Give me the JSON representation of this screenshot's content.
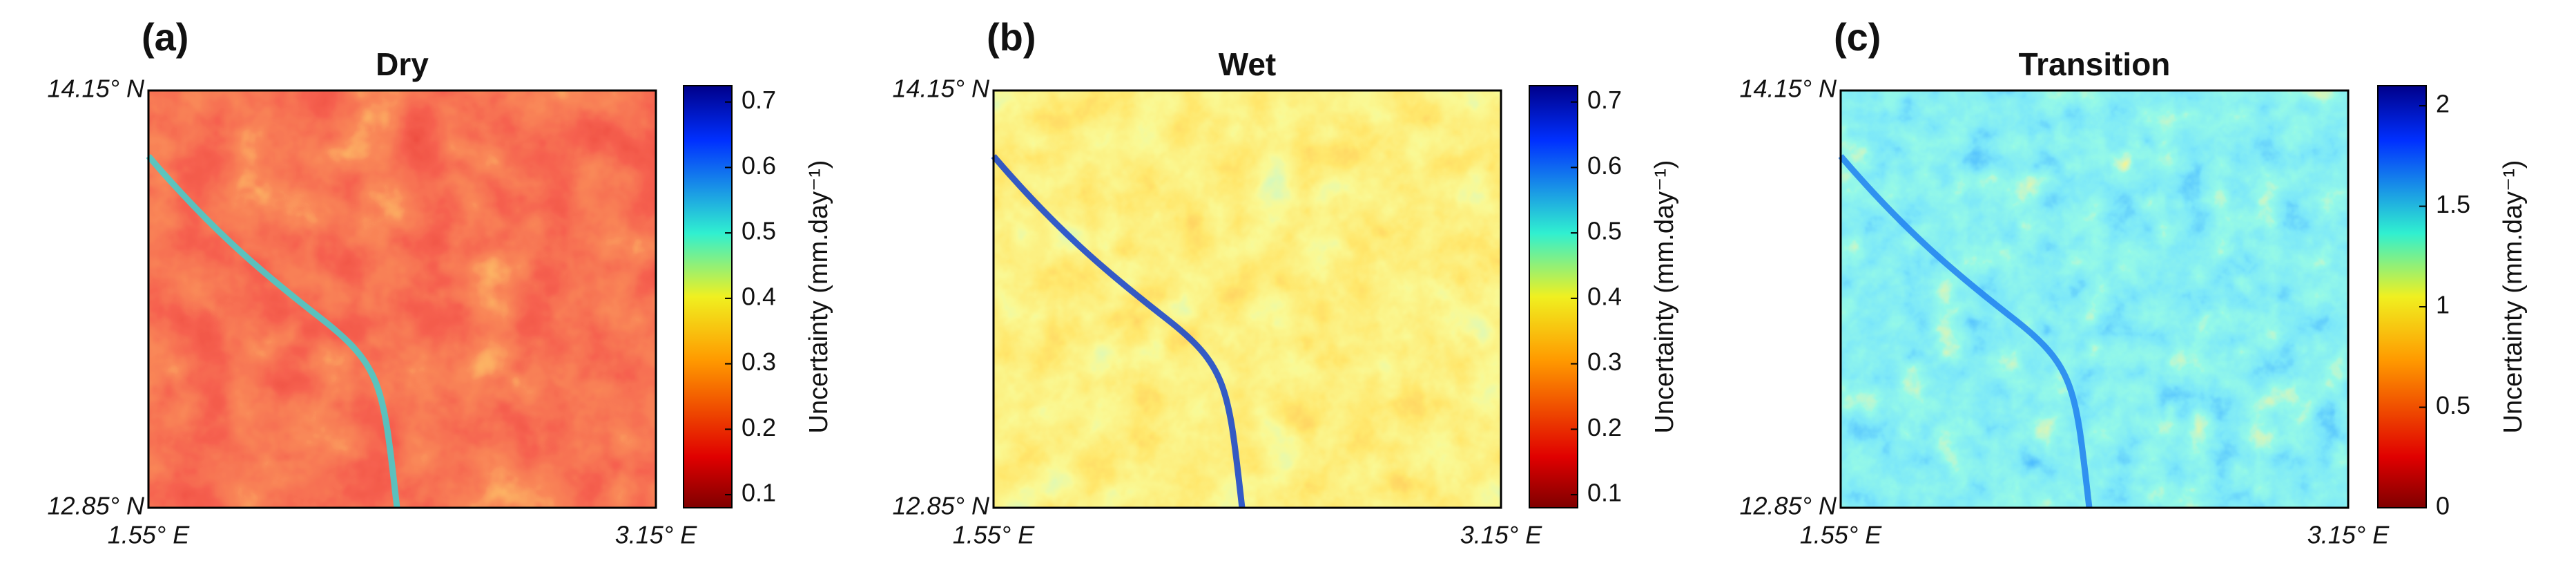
{
  "panels": [
    {
      "label": "(a)",
      "title": "Dry",
      "lat_top": "14.15° N",
      "lat_bottom": "12.85° N",
      "lon_left": "1.55° E",
      "lon_right": "3.15° E",
      "colorbar": {
        "label": "Uncertainty (mm.day⁻¹)",
        "lim": [
          0.08,
          0.725
        ],
        "ticks": [
          0.1,
          0.2,
          0.3,
          0.4,
          0.5,
          0.6,
          0.7
        ]
      }
    },
    {
      "label": "(b)",
      "title": "Wet",
      "lat_top": "14.15° N",
      "lat_bottom": "12.85° N",
      "lon_left": "1.55° E",
      "lon_right": "3.15° E",
      "colorbar": {
        "label": "Uncertainty (mm.day⁻¹)",
        "lim": [
          0.08,
          0.725
        ],
        "ticks": [
          0.1,
          0.2,
          0.3,
          0.4,
          0.5,
          0.6,
          0.7
        ]
      }
    },
    {
      "label": "(c)",
      "title": "Transition",
      "lat_top": "14.15° N",
      "lat_bottom": "12.85° N",
      "lon_left": "1.55° E",
      "lon_right": "3.15° E",
      "colorbar": {
        "label": "Uncertainty (mm.day⁻¹)",
        "lim": [
          0,
          2.1
        ],
        "ticks": [
          0,
          0.5,
          1,
          1.5,
          2
        ]
      }
    }
  ]
}
